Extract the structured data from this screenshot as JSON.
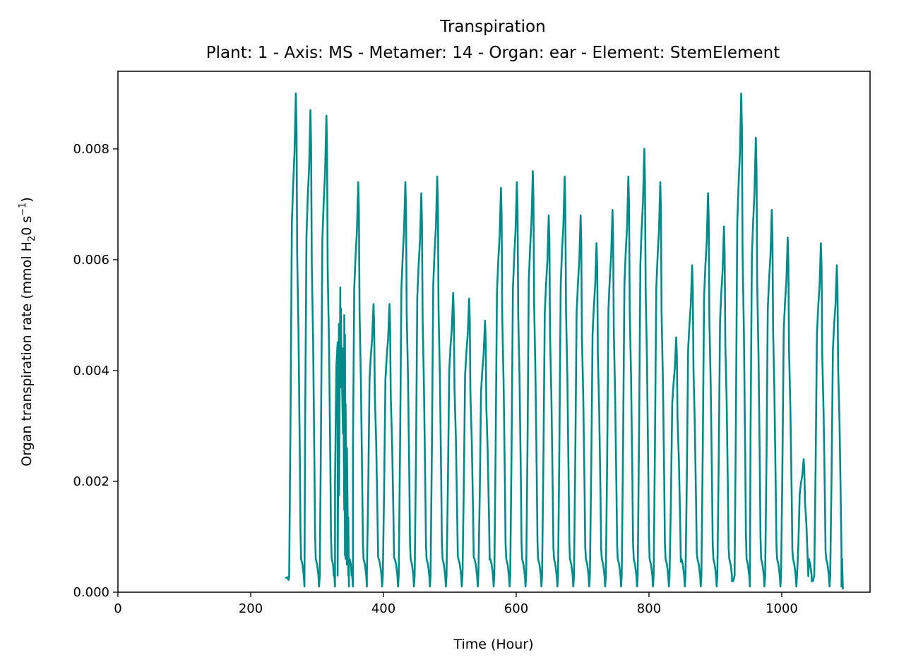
{
  "chart_data": {
    "type": "line",
    "title": "Transpiration",
    "subtitle": "Plant: 1 - Axis: MS - Metamer: 14 - Organ: ear - Element: StemElement",
    "xlabel": "Time (Hour)",
    "ylabel": {
      "main": "Organ transpiration rate (mmol H",
      "sub": "2",
      "mid": "0 s",
      "sup": "−1",
      "end": ")"
    },
    "xlim": [
      0,
      1133
    ],
    "ylim": [
      0,
      0.0094
    ],
    "x_ticks": [
      {
        "value": 0,
        "label": "0"
      },
      {
        "value": 200,
        "label": "200"
      },
      {
        "value": 400,
        "label": "400"
      },
      {
        "value": 600,
        "label": "600"
      },
      {
        "value": 800,
        "label": "800"
      },
      {
        "value": 1000,
        "label": "1000"
      }
    ],
    "y_ticks": [
      {
        "value": 0,
        "label": "0.000"
      },
      {
        "value": 0.002,
        "label": "0.002"
      },
      {
        "value": 0.004,
        "label": "0.004"
      },
      {
        "value": 0.006,
        "label": "0.006"
      },
      {
        "value": 0.008,
        "label": "0.008"
      }
    ],
    "grid": false,
    "line_color": "#008b8b",
    "series": [
      {
        "x_start": 252,
        "x_end": 1092,
        "peaks": [
          {
            "t": 268,
            "v": 0.009
          },
          {
            "t": 290,
            "v": 0.0087
          },
          {
            "t": 314,
            "v": 0.0086
          },
          {
            "t": 335,
            "v": 0.0055
          },
          {
            "t": 341,
            "v": 0.005
          },
          {
            "t": 362,
            "v": 0.0074
          },
          {
            "t": 385,
            "v": 0.0052
          },
          {
            "t": 409,
            "v": 0.0052
          },
          {
            "t": 433,
            "v": 0.0074
          },
          {
            "t": 457,
            "v": 0.0072
          },
          {
            "t": 481,
            "v": 0.0075
          },
          {
            "t": 505,
            "v": 0.0054
          },
          {
            "t": 529,
            "v": 0.0053
          },
          {
            "t": 553,
            "v": 0.0049
          },
          {
            "t": 577,
            "v": 0.0073
          },
          {
            "t": 601,
            "v": 0.0074
          },
          {
            "t": 625,
            "v": 0.0076
          },
          {
            "t": 649,
            "v": 0.0068
          },
          {
            "t": 673,
            "v": 0.0075
          },
          {
            "t": 697,
            "v": 0.0068
          },
          {
            "t": 721,
            "v": 0.0063
          },
          {
            "t": 745,
            "v": 0.0069
          },
          {
            "t": 769,
            "v": 0.0075
          },
          {
            "t": 793,
            "v": 0.008
          },
          {
            "t": 817,
            "v": 0.0074
          },
          {
            "t": 841,
            "v": 0.0046
          },
          {
            "t": 865,
            "v": 0.0059
          },
          {
            "t": 889,
            "v": 0.0072
          },
          {
            "t": 913,
            "v": 0.0066
          },
          {
            "t": 939,
            "v": 0.009
          },
          {
            "t": 961,
            "v": 0.0082
          },
          {
            "t": 985,
            "v": 0.0069
          },
          {
            "t": 1009,
            "v": 0.0064
          },
          {
            "t": 1033,
            "v": 0.0024
          },
          {
            "t": 1059,
            "v": 0.0063
          },
          {
            "t": 1083,
            "v": 0.0059
          }
        ]
      }
    ]
  }
}
